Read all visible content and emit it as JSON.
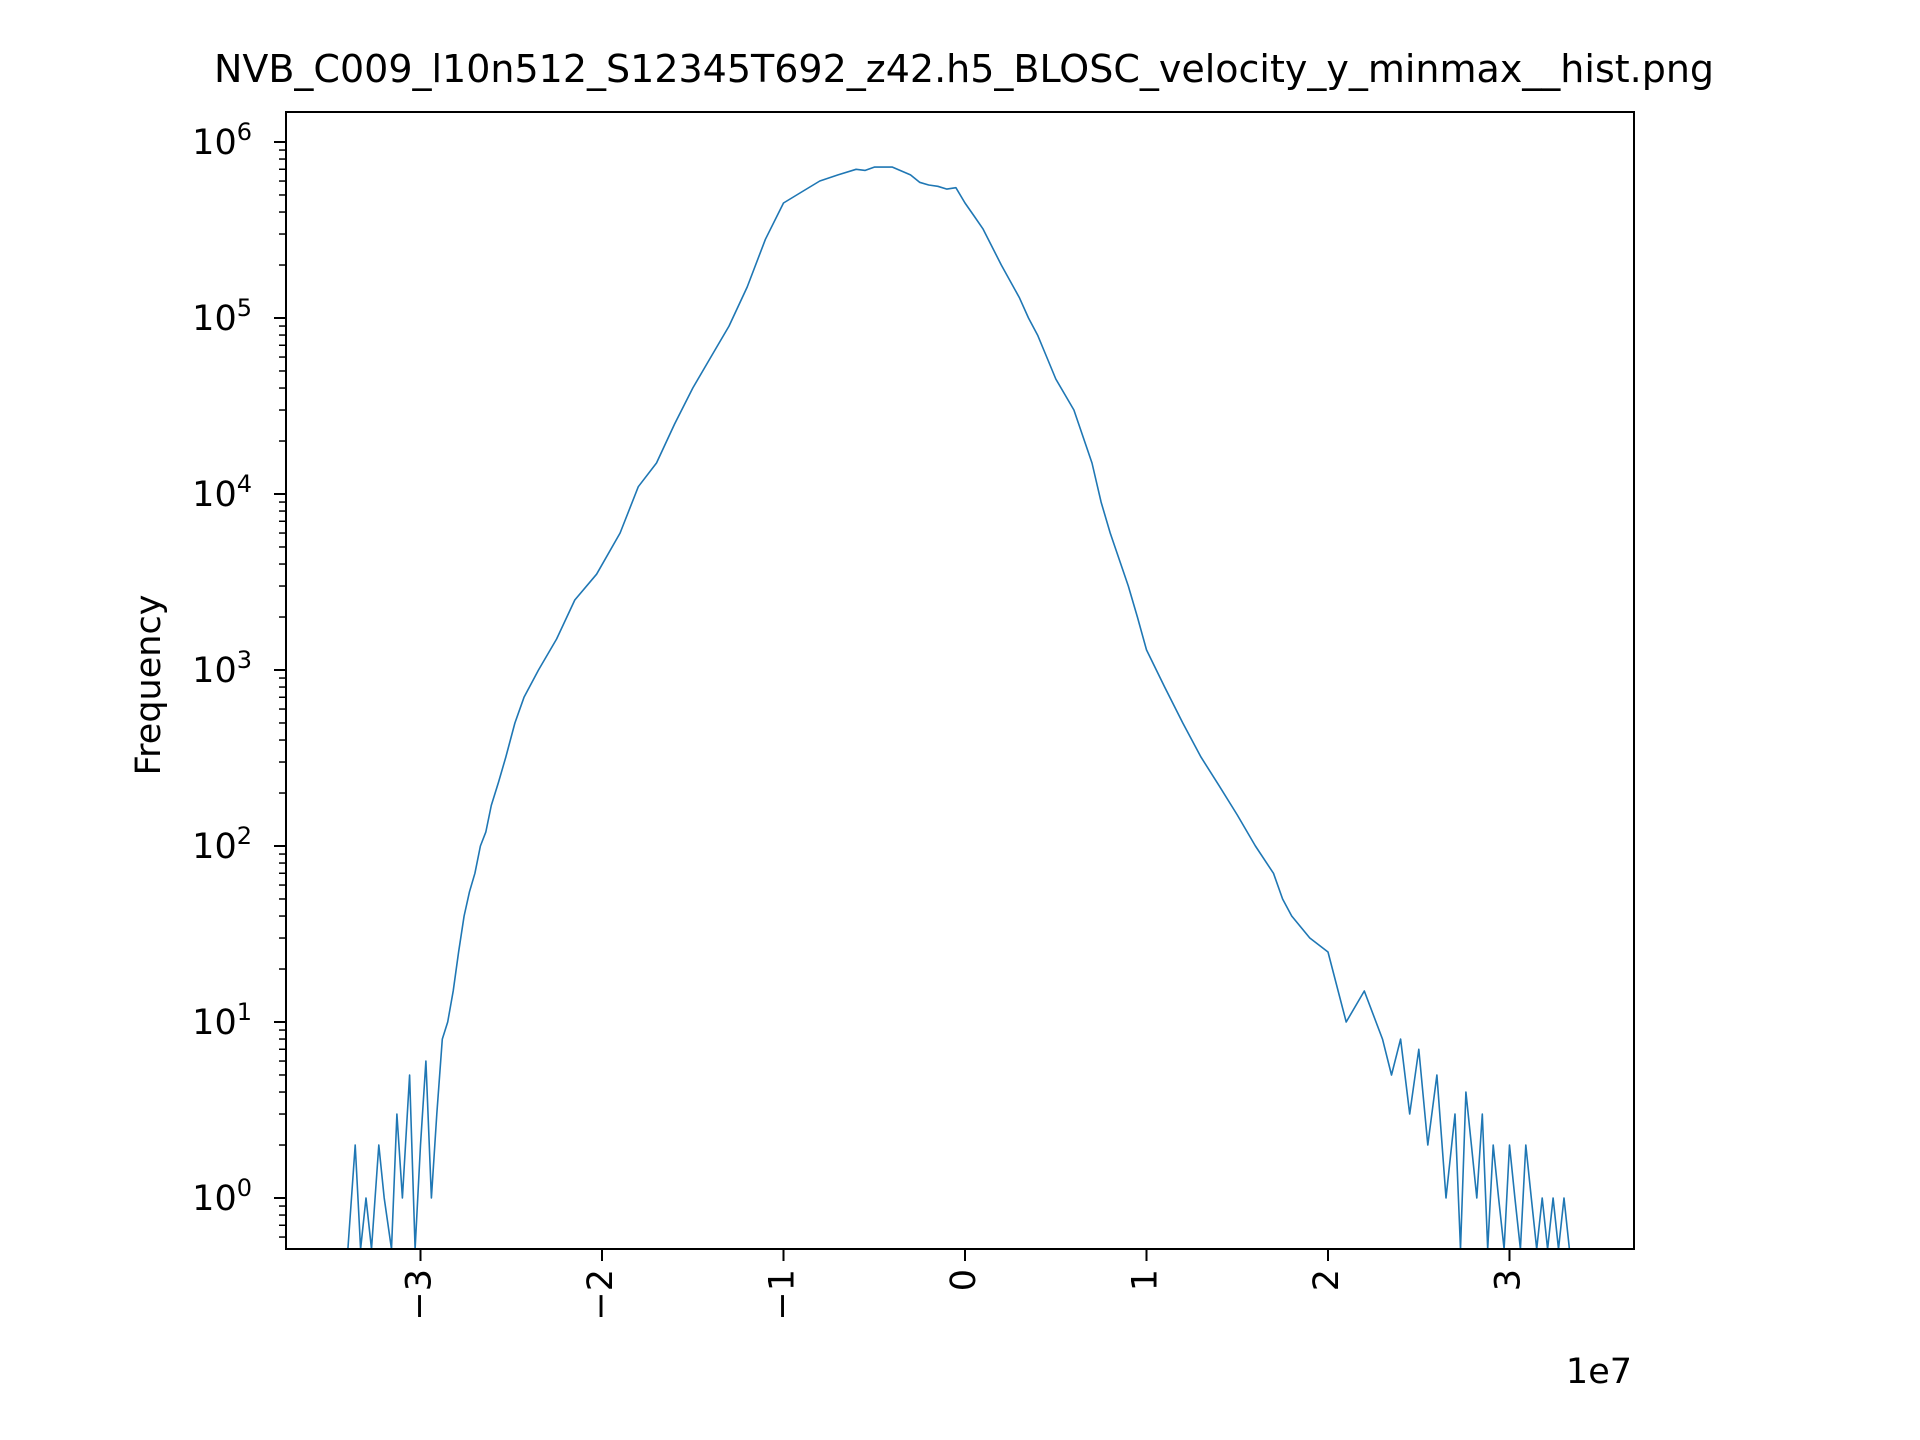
{
  "chart_data": {
    "type": "line",
    "title": "NVB_C009_l10n512_S12345T692_z42.h5_BLOSC_velocity_y_minmax__hist.png",
    "xlabel": "",
    "ylabel": "Frequency",
    "x_offset_label": "1e7",
    "x_scale": "linear",
    "y_scale": "log",
    "xlim": [
      -37300000.0,
      37000000.0
    ],
    "ylim": [
      0.5,
      1500000
    ],
    "x_ticks": [
      {
        "value": -30000000,
        "label": "−3"
      },
      {
        "value": -20000000,
        "label": "−2"
      },
      {
        "value": -10000000,
        "label": "−1"
      },
      {
        "value": 0,
        "label": "0"
      },
      {
        "value": 10000000,
        "label": "1"
      },
      {
        "value": 20000000,
        "label": "2"
      },
      {
        "value": 30000000,
        "label": "3"
      }
    ],
    "y_ticks": [
      {
        "value": 1,
        "base": "10",
        "exp": "0"
      },
      {
        "value": 10,
        "base": "10",
        "exp": "1"
      },
      {
        "value": 100,
        "base": "10",
        "exp": "2"
      },
      {
        "value": 1000,
        "base": "10",
        "exp": "3"
      },
      {
        "value": 10000,
        "base": "10",
        "exp": "4"
      },
      {
        "value": 100000,
        "base": "10",
        "exp": "5"
      },
      {
        "value": 1000000,
        "base": "10",
        "exp": "6"
      }
    ],
    "grid": false,
    "legend": "none",
    "line_color": "#1f77b4",
    "series": [
      {
        "x": [
          -34000000,
          -33600000,
          -33300000,
          -33000000,
          -32700000,
          -32300000,
          -32000000,
          -31600000,
          -31300000,
          -31000000,
          -30600000,
          -30300000,
          -30000000,
          -29700000,
          -29400000,
          -29100000,
          -28800000,
          -28500000,
          -28200000,
          -27900000,
          -27600000,
          -27300000,
          -27000000,
          -26700000,
          -26400000,
          -26100000,
          -25700000,
          -25300000,
          -24800000,
          -24300000,
          -23500000,
          -22500000,
          -21500000,
          -20300000,
          -19000000,
          -18000000,
          -17000000,
          -16000000,
          -15000000,
          -14000000,
          -13000000,
          -12000000,
          -11000000,
          -10000000,
          -9000000,
          -8000000,
          -7000000,
          -6000000,
          -5500000,
          -5000000,
          -4000000,
          -3000000,
          -2500000,
          -2000000,
          -1500000,
          -1000000,
          -500000,
          0,
          500000,
          1000000,
          2000000,
          3000000,
          3500000,
          4000000,
          4500000,
          5000000,
          6000000,
          7000000,
          7500000,
          8000000,
          9000000,
          9500000,
          10000000,
          11000000,
          12000000,
          13000000,
          14000000,
          15000000,
          16000000,
          17000000,
          17500000,
          18000000,
          19000000,
          20000000,
          21000000,
          22000000,
          23000000,
          23500000,
          24000000,
          24500000,
          25000000,
          25500000,
          26000000,
          26500000,
          27000000,
          27300000,
          27600000,
          27900000,
          28200000,
          28500000,
          28800000,
          29100000,
          29400000,
          29700000,
          30000000,
          30300000,
          30600000,
          30900000,
          31200000,
          31500000,
          31800000,
          32100000,
          32400000,
          32700000,
          33000000,
          33300000
        ],
        "y": [
          0.5,
          2,
          0.5,
          1,
          0.5,
          2,
          1,
          0.5,
          3,
          1,
          5,
          0.5,
          2,
          6,
          1,
          3,
          8,
          10,
          15,
          25,
          40,
          55,
          70,
          100,
          120,
          170,
          230,
          320,
          500,
          700,
          1000,
          1500,
          2500,
          3500,
          6000,
          11000,
          15000,
          25000,
          40000,
          60000,
          90000,
          150000,
          280000,
          450000,
          520000,
          600000,
          650000,
          700000,
          690000,
          720000,
          720000,
          650000,
          590000,
          570000,
          560000,
          540000,
          550000,
          450000,
          380000,
          320000,
          200000,
          130000,
          100000,
          80000,
          60000,
          45000,
          30000,
          15000,
          9000,
          6000,
          3000,
          2000,
          1300,
          800,
          500,
          320,
          220,
          150,
          100,
          70,
          50,
          40,
          30,
          25,
          10,
          15,
          8,
          5,
          8,
          3,
          7,
          2,
          5,
          1,
          3,
          0.5,
          4,
          2,
          1,
          3,
          0.5,
          2,
          1,
          0.5,
          2,
          1,
          0.5,
          2,
          1,
          0.5,
          1,
          0.5,
          1,
          0.5,
          1,
          0.5
        ]
      }
    ]
  }
}
